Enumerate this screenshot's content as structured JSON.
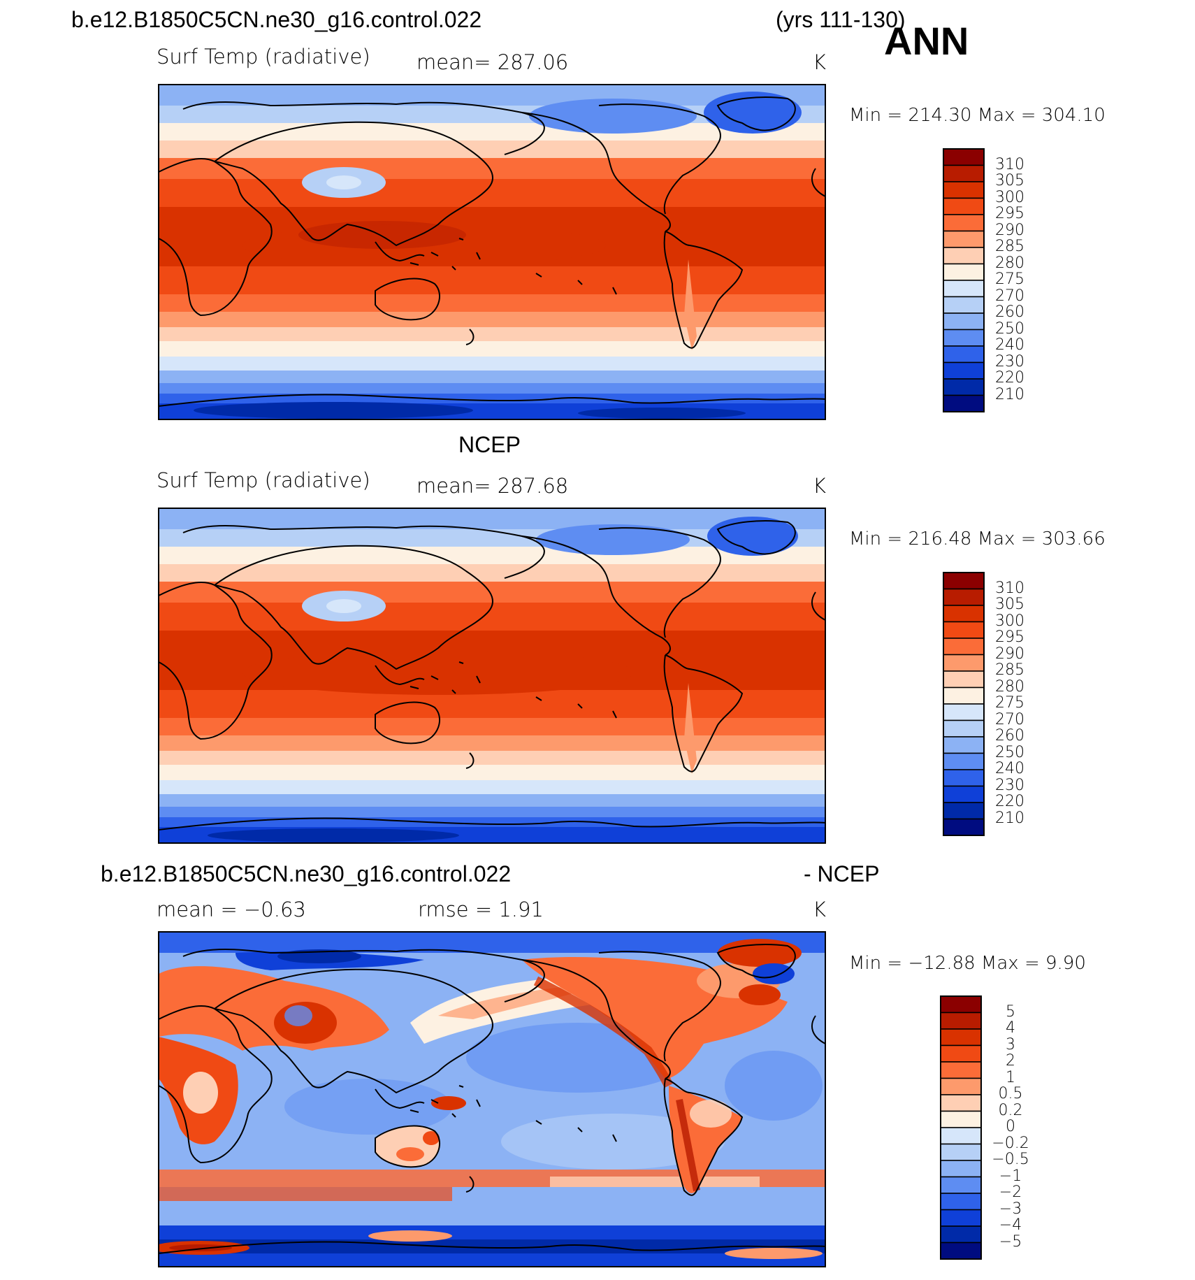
{
  "header": {
    "case_name": "b.e12.B1850C5CN.ne30_g16.control.022",
    "years": "(yrs 111-130)",
    "season": "ANN"
  },
  "panels": [
    {
      "id": "model",
      "title": "",
      "left_label": "Surf Temp (radiative)",
      "center_label": "mean=  287.06",
      "units": "K",
      "minmax": "Min  =  214.30  Max  =  304.10",
      "colorbar_labels": [
        "310",
        "305",
        "300",
        "295",
        "290",
        "285",
        "280",
        "275",
        "270",
        "260",
        "250",
        "240",
        "230",
        "220",
        "210"
      ]
    },
    {
      "id": "obs",
      "title": "NCEP",
      "left_label": "Surf Temp (radiative)",
      "center_label": "mean=  287.68",
      "units": "K",
      "minmax": "Min  =  216.48  Max  =  303.66",
      "colorbar_labels": [
        "310",
        "305",
        "300",
        "295",
        "290",
        "285",
        "280",
        "275",
        "270",
        "260",
        "250",
        "240",
        "230",
        "220",
        "210"
      ]
    },
    {
      "id": "diff",
      "title_left": "b.e12.B1850C5CN.ne30_g16.control.022",
      "title_right": "- NCEP",
      "left_label": "mean =    −0.63",
      "center_label": "rmse =     1.91",
      "units": "K",
      "minmax": "Min  =  −12.88  Max  =      9.90",
      "colorbar_labels": [
        "5",
        "4",
        "3",
        "2",
        "1",
        "0.5",
        "0.2",
        "0",
        "−0.2",
        "−0.5",
        "−1",
        "−2",
        "−3",
        "−4",
        "−5"
      ]
    }
  ],
  "colors": {
    "absolute_scale": [
      "#8b0000",
      "#b81c00",
      "#d93200",
      "#f04a14",
      "#fb6c38",
      "#fd9a6c",
      "#fecfb4",
      "#fdf1e2",
      "#d6e6fa",
      "#b6d0f6",
      "#8cb2f4",
      "#5e8df2",
      "#2f62ea",
      "#0f40d8",
      "#002aa8",
      "#000c80"
    ],
    "difference_scale": [
      "#8b0000",
      "#b81c00",
      "#d93200",
      "#f04a14",
      "#fb6c38",
      "#fd9a6c",
      "#fecfb4",
      "#fdf1e2",
      "#d6e6fa",
      "#b6d0f6",
      "#8cb2f4",
      "#5e8df2",
      "#2f62ea",
      "#0f40d8",
      "#002aa8",
      "#000c80"
    ]
  }
}
